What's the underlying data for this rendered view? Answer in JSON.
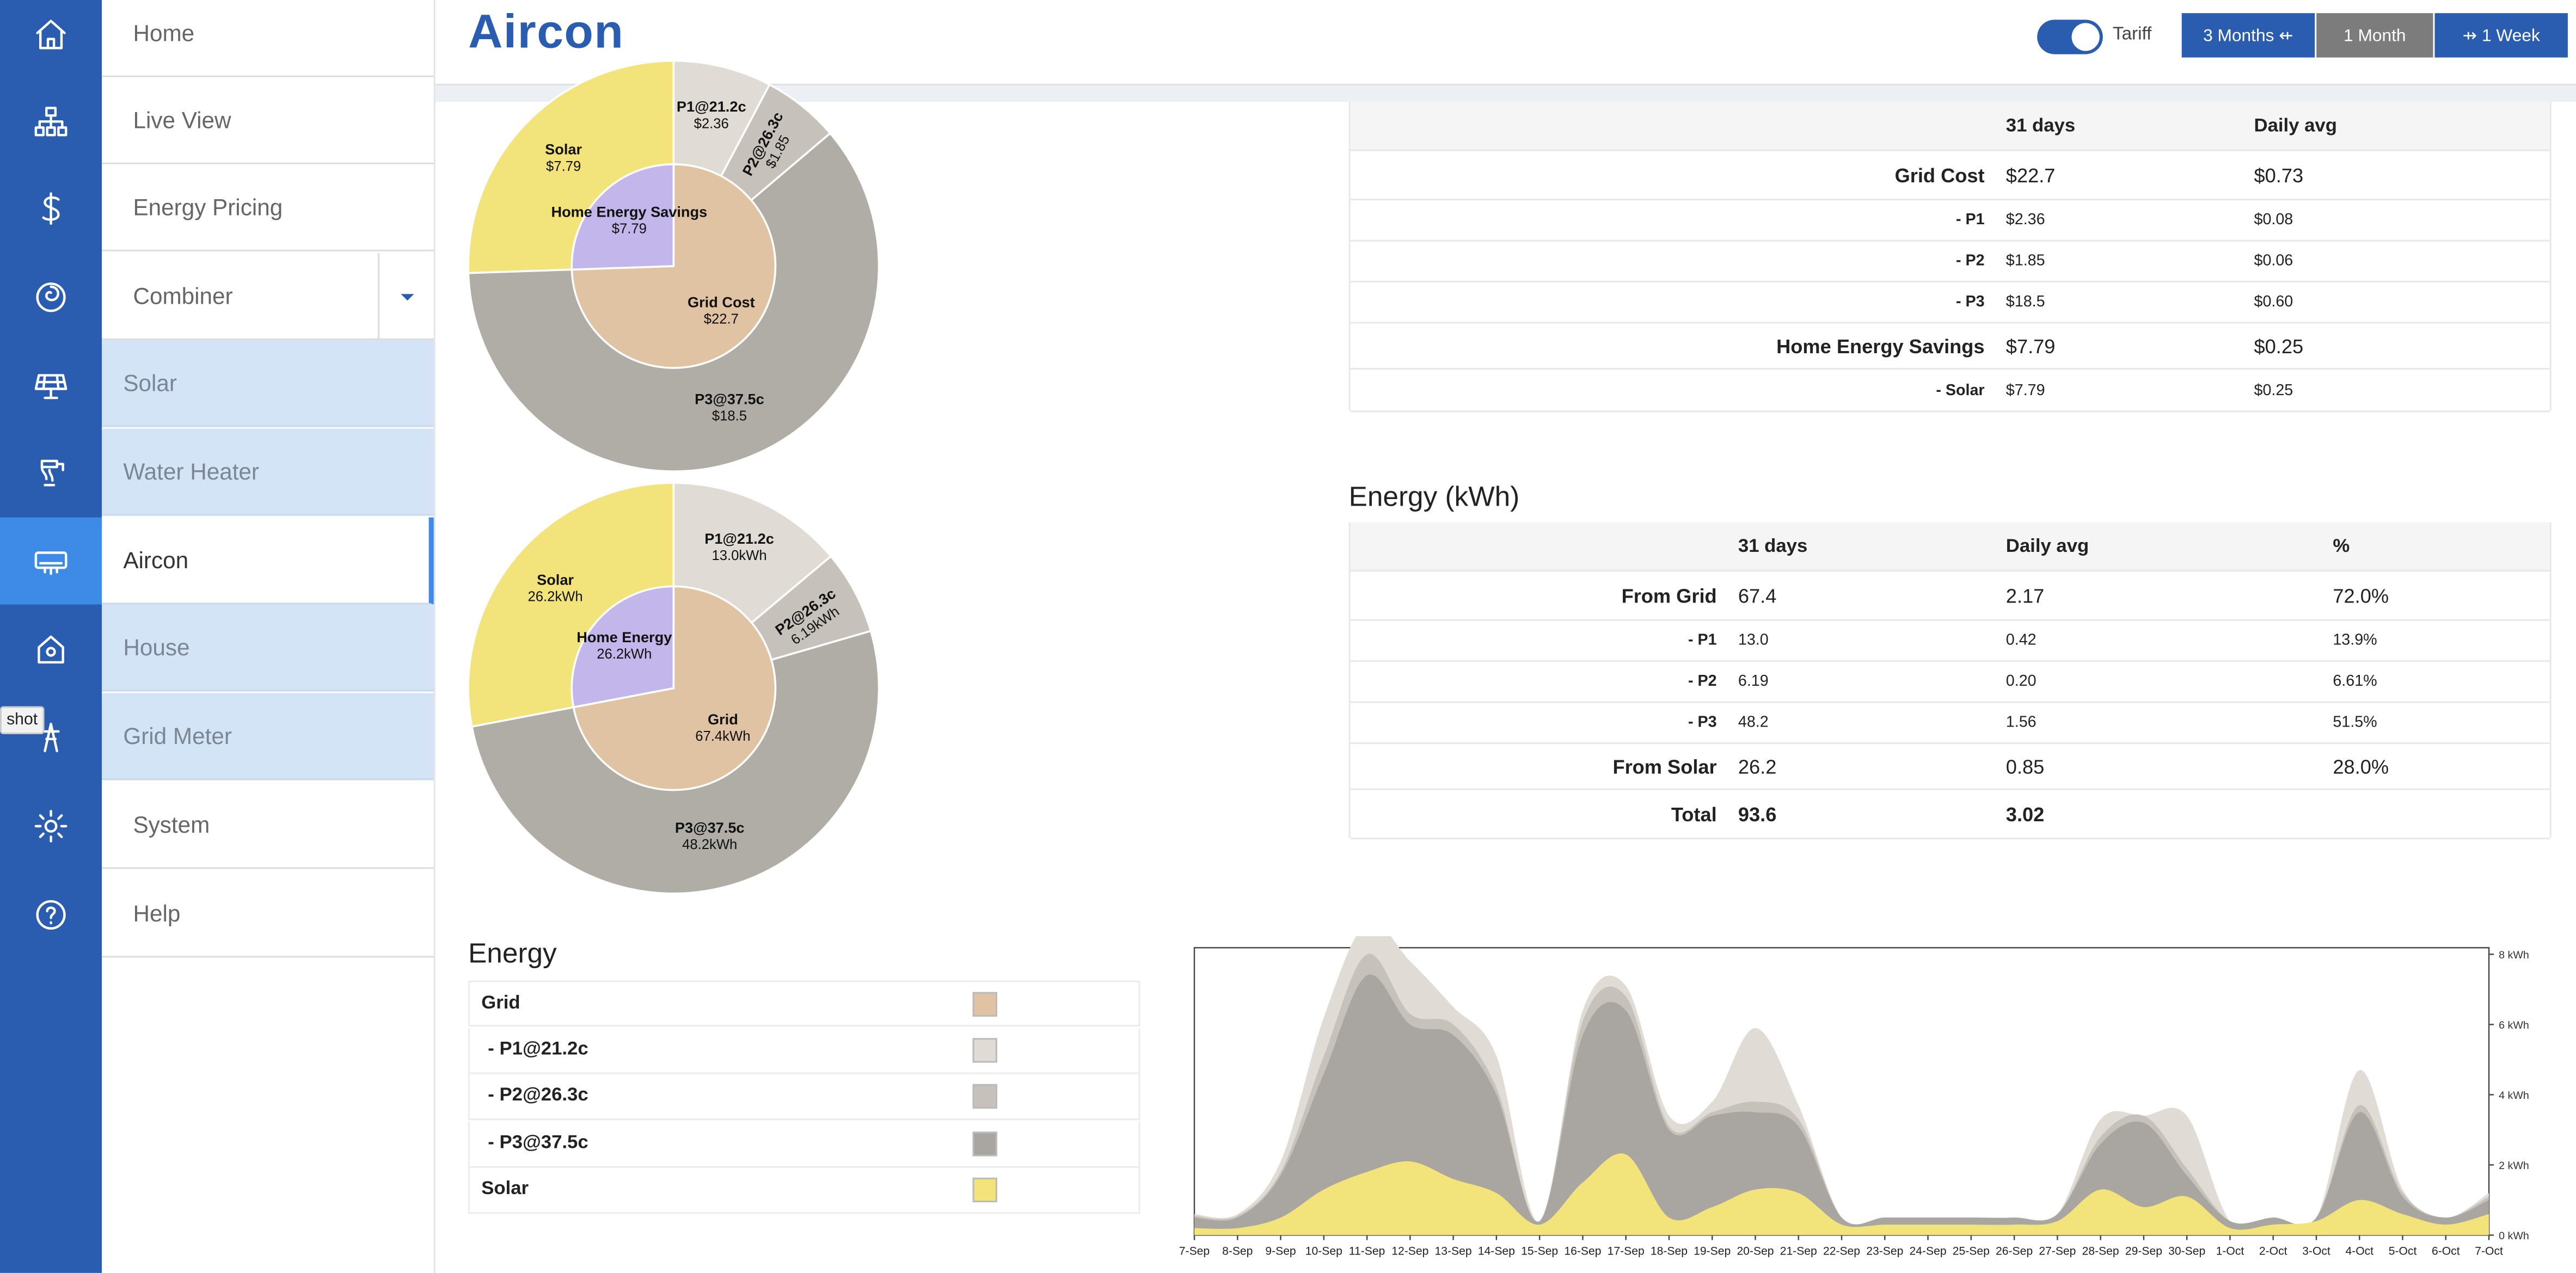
{
  "app": {
    "title": "Aircon",
    "tooltip": "shot"
  },
  "rail": [
    "home-icon",
    "network-icon",
    "dollar-icon",
    "spiral-icon",
    "solar-panel-icon",
    "water-heater-icon",
    "aircon-icon",
    "house-icon",
    "grid-meter-icon",
    "gear-icon",
    "help-icon"
  ],
  "nav": {
    "items": [
      "Home",
      "Live View",
      "Energy Pricing",
      "Combiner"
    ],
    "sub": [
      "Solar",
      "Water Heater",
      "Aircon",
      "House",
      "Grid Meter"
    ],
    "bottom": [
      "System",
      "Help"
    ]
  },
  "header": {
    "tariff": "Tariff",
    "tariff_on": true,
    "btn_3m": "3 Months ⇷",
    "btn_1m": "1 Month",
    "btn_1w": "⇸ 1 Week"
  },
  "cost_table": {
    "headers": [
      "31 days",
      "Daily avg"
    ],
    "rows": [
      {
        "label": "Grid Cost",
        "total": "$22.7",
        "avg": "$0.73",
        "main": true
      },
      {
        "label": "- P1",
        "total": "$2.36",
        "avg": "$0.08",
        "main": false
      },
      {
        "label": "- P2",
        "total": "$1.85",
        "avg": "$0.06",
        "main": false
      },
      {
        "label": "- P3",
        "total": "$18.5",
        "avg": "$0.60",
        "main": false
      },
      {
        "label": "Home Energy Savings",
        "total": "$7.79",
        "avg": "$0.25",
        "main": true
      },
      {
        "label": "- Solar",
        "total": "$7.79",
        "avg": "$0.25",
        "main": false
      }
    ]
  },
  "energy_table": {
    "title": "Energy (kWh)",
    "headers": [
      "31 days",
      "Daily avg",
      "%"
    ],
    "rows": [
      {
        "label": "From Grid",
        "total": "67.4",
        "avg": "2.17",
        "pct": "72.0%",
        "main": true
      },
      {
        "label": "- P1",
        "total": "13.0",
        "avg": "0.42",
        "pct": "13.9%",
        "main": false
      },
      {
        "label": "- P2",
        "total": "6.19",
        "avg": "0.20",
        "pct": "6.61%",
        "main": false
      },
      {
        "label": "- P3",
        "total": "48.2",
        "avg": "1.56",
        "pct": "51.5%",
        "main": false
      },
      {
        "label": "From Solar",
        "total": "26.2",
        "avg": "0.85",
        "pct": "28.0%",
        "main": true
      },
      {
        "label": "Total",
        "total": "93.6",
        "avg": "3.02",
        "pct": "",
        "main": true,
        "bold": true
      }
    ]
  },
  "cost_pie": {
    "outer": [
      {
        "label": "P1@21.2c",
        "value": "$2.36",
        "amount": 2.36,
        "color": "#e0dbd5"
      },
      {
        "label": "P2@26.3c",
        "value": "$1.85",
        "amount": 1.85,
        "color": "#c6c1bb"
      },
      {
        "label": "P3@37.5c",
        "value": "$18.5",
        "amount": 18.5,
        "color": "#b0aca6"
      },
      {
        "label": "Solar",
        "value": "$7.79",
        "amount": 7.79,
        "color": "#f2e37a"
      }
    ],
    "inner": [
      {
        "label": "Grid Cost",
        "value": "$22.7",
        "amount": 22.7,
        "color": "#dfc3a3"
      },
      {
        "label": "Home Energy Savings",
        "value": "$7.79",
        "amount": 7.79,
        "color": "#c3b6ea"
      }
    ]
  },
  "energy_pie": {
    "outer": [
      {
        "label": "P1@21.2c",
        "value": "13.0kWh",
        "amount": 13.0,
        "color": "#e0dbd5"
      },
      {
        "label": "P2@26.3c",
        "value": "6.19kWh",
        "amount": 6.19,
        "color": "#c6c1bb"
      },
      {
        "label": "P3@37.5c",
        "value": "48.2kWh",
        "amount": 48.2,
        "color": "#b0aca6"
      },
      {
        "label": "Solar",
        "value": "26.2kWh",
        "amount": 26.2,
        "color": "#f2e37a"
      }
    ],
    "inner": [
      {
        "label": "Grid",
        "value": "67.4kWh",
        "amount": 67.4,
        "color": "#dfc3a3"
      },
      {
        "label": "Home Energy",
        "value": "26.2kWh",
        "amount": 26.2,
        "color": "#c3b6ea"
      }
    ]
  },
  "legend": {
    "title": "Energy",
    "items": [
      {
        "label": "Grid",
        "color": "#dfc3a3",
        "indent": false
      },
      {
        "label": "- P1@21.2c",
        "color": "#e0dbd5",
        "indent": true
      },
      {
        "label": "- P2@26.3c",
        "color": "#c6c1bb",
        "indent": true
      },
      {
        "label": "- P3@37.5c",
        "color": "#a9a6a1",
        "indent": true
      },
      {
        "label": "Solar",
        "color": "#f2e37a",
        "indent": false
      }
    ]
  },
  "chart_data": {
    "type": "area",
    "x": [
      "7-Sep",
      "8-Sep",
      "9-Sep",
      "10-Sep",
      "11-Sep",
      "12-Sep",
      "13-Sep",
      "14-Sep",
      "15-Sep",
      "16-Sep",
      "17-Sep",
      "18-Sep",
      "19-Sep",
      "20-Sep",
      "21-Sep",
      "22-Sep",
      "23-Sep",
      "24-Sep",
      "25-Sep",
      "26-Sep",
      "27-Sep",
      "28-Sep",
      "29-Sep",
      "30-Sep",
      "1-Oct",
      "2-Oct",
      "3-Oct",
      "4-Oct",
      "5-Oct",
      "6-Oct",
      "7-Oct"
    ],
    "yticks": [
      "0 kWh",
      "2 kWh",
      "4 kWh",
      "6 kWh",
      "8 kWh"
    ],
    "ylim": [
      0,
      8
    ],
    "stack_order": [
      "Solar",
      "- P3@37.5c",
      "- P2@26.3c",
      "- P1@21.2c"
    ],
    "series": [
      {
        "name": "Solar",
        "color": "#f2e37a",
        "values": [
          0.2,
          0.2,
          0.5,
          1.3,
          1.8,
          2.1,
          1.6,
          1.2,
          0.3,
          1.5,
          2.3,
          0.5,
          0.8,
          1.3,
          1.2,
          0.3,
          0.3,
          0.3,
          0.3,
          0.3,
          0.4,
          1.3,
          0.8,
          1.1,
          0.2,
          0.3,
          0.4,
          1.0,
          0.6,
          0.3,
          0.6
        ]
      },
      {
        "name": "- P3@37.5c",
        "color": "#a9a6a1",
        "values": [
          0.3,
          0.3,
          1.2,
          3.3,
          5.6,
          3.9,
          4.1,
          2.8,
          0.1,
          4.2,
          4.1,
          2.5,
          2.6,
          2.2,
          1.9,
          0.2,
          0.2,
          0.2,
          0.2,
          0.2,
          0.2,
          1.3,
          2.4,
          0.6,
          0.2,
          0.2,
          0.1,
          2.5,
          0.5,
          0.2,
          0.4
        ]
      },
      {
        "name": "- P2@26.3c",
        "color": "#c6c1bb",
        "values": [
          0.05,
          0.05,
          0.1,
          0.5,
          0.6,
          0.3,
          0.3,
          0.2,
          0.0,
          0.4,
          0.4,
          0.1,
          0.1,
          0.3,
          0.2,
          0.0,
          0.0,
          0.0,
          0.0,
          0.0,
          0.0,
          0.2,
          0.2,
          0.2,
          0.0,
          0.0,
          0.0,
          0.2,
          0.1,
          0.0,
          0.1
        ]
      },
      {
        "name": "- P1@21.2c",
        "color": "#e0dbd5",
        "values": [
          0.05,
          0.05,
          0.3,
          1.1,
          0.9,
          1.5,
          0.5,
          0.9,
          0.0,
          0.3,
          0.3,
          0.3,
          0.3,
          2.1,
          0.4,
          0.0,
          0.0,
          0.0,
          0.0,
          0.0,
          0.0,
          0.5,
          0.0,
          1.5,
          0.0,
          0.0,
          0.0,
          1.0,
          0.1,
          0.0,
          0.1
        ]
      }
    ]
  }
}
